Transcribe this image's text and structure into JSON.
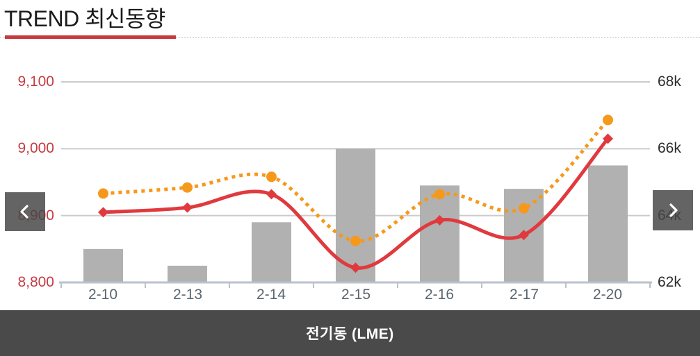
{
  "header": {
    "title": "TREND 최신동향"
  },
  "footer": {
    "instrument_label": "전기동 (LME)"
  },
  "colors": {
    "accent_red": "#c6393f",
    "bar_gray": "#b1b1b1",
    "line_red": "#e03a3e",
    "line_orange": "#f6991b",
    "grid": "#cbcbcb",
    "baseline": "#b9c3cc",
    "footer_bg": "#4a4a4a"
  },
  "chart_data": {
    "type": "combo-bar-line",
    "title": "전기동 (LME)",
    "xlabel": "",
    "ylabel": "",
    "grid": true,
    "legend": "none",
    "categories": [
      "2-10",
      "2-13",
      "2-14",
      "2-15",
      "2-16",
      "2-17",
      "2-20"
    ],
    "series": [
      {
        "name": "volume-bars",
        "type": "bar",
        "axis": "right",
        "color": "#b1b1b1",
        "values": [
          63.0,
          62.5,
          63.8,
          66.0,
          64.9,
          64.8,
          65.5
        ]
      },
      {
        "name": "price-line-dotted-orange",
        "type": "line",
        "line_style": "dotted",
        "marker": "circle",
        "axis": "left",
        "color": "#f6991b",
        "values": [
          8933,
          8942,
          8958,
          8862,
          8932,
          8911,
          9043
        ]
      },
      {
        "name": "price-line-solid-red",
        "type": "line",
        "line_style": "solid",
        "marker": "diamond",
        "axis": "left",
        "color": "#e03a3e",
        "values": [
          8905,
          8912,
          8932,
          8822,
          8893,
          8871,
          9015
        ]
      }
    ],
    "yaxis_left": {
      "min": 8800,
      "max": 9100,
      "ticks": [
        "9,100",
        "9,000",
        "8,900",
        "8,800"
      ],
      "tick_values": [
        9100,
        9000,
        8900,
        8800
      ],
      "color": "#c53b43"
    },
    "yaxis_right": {
      "min": 62,
      "max": 68,
      "ticks": [
        "68k",
        "66k",
        "64k",
        "62k"
      ],
      "tick_values": [
        68,
        66,
        64,
        62
      ],
      "color": "#2b2b2b"
    }
  }
}
